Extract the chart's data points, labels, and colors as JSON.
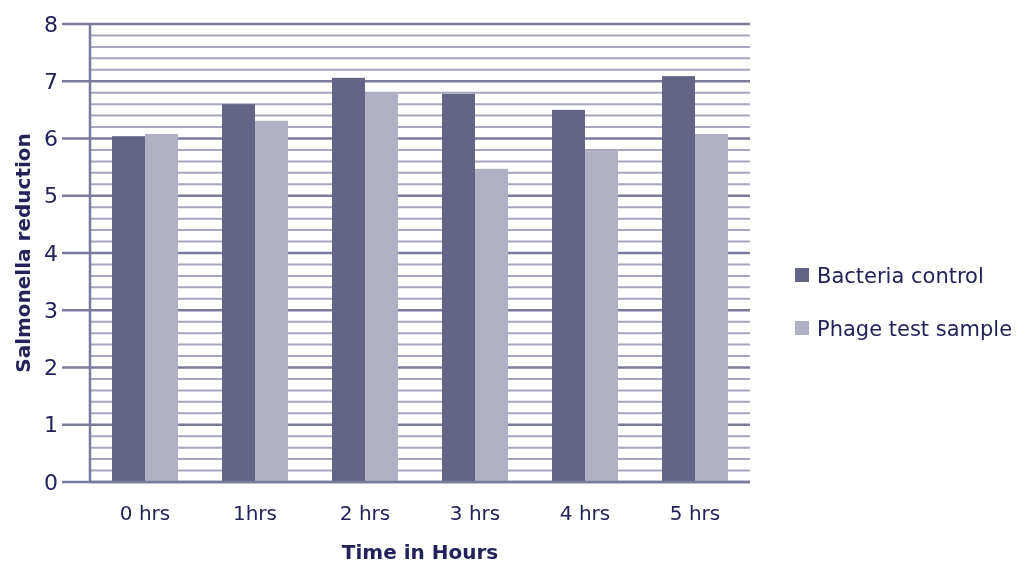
{
  "chart_data": {
    "type": "bar",
    "xlabel": "Time in Hours",
    "ylabel": "Salmonella reduction",
    "categories": [
      "0 hrs",
      "1hrs",
      "2 hrs",
      "3 hrs",
      "4 hrs",
      "5 hrs"
    ],
    "series": [
      {
        "name": "Bacteria control",
        "color": "#646487",
        "values": [
          6.04,
          6.6,
          7.06,
          6.78,
          6.5,
          7.09
        ]
      },
      {
        "name": "Phage test sample",
        "color": "#b0b0c4",
        "values": [
          6.08,
          6.31,
          6.81,
          5.47,
          5.78,
          6.08
        ]
      }
    ],
    "ylim": [
      0,
      8
    ],
    "yticks": [
      0,
      {
        "value": 0.2,
        "label": null
      },
      {
        "value": 0.4,
        "label": null
      },
      {
        "value": 0.6,
        "label": null
      },
      {
        "value": 0.8,
        "label": null
      },
      1,
      {
        "value": 1.2,
        "label": null
      },
      {
        "value": 1.4,
        "label": null
      },
      {
        "value": 1.6,
        "label": null
      },
      {
        "value": 1.8,
        "label": null
      },
      2,
      {
        "value": 2.2,
        "label": null
      },
      {
        "value": 2.4,
        "label": null
      },
      {
        "value": 2.6,
        "label": null
      },
      {
        "value": 2.8,
        "label": null
      },
      3,
      {
        "value": 3.2,
        "label": null
      },
      {
        "value": 3.4,
        "label": null
      },
      {
        "value": 3.6,
        "label": null
      },
      {
        "value": 3.8,
        "label": null
      },
      4,
      {
        "value": 4.2,
        "label": null
      },
      {
        "value": 4.4,
        "label": null
      },
      {
        "value": 4.6,
        "label": null
      },
      {
        "value": 4.8,
        "label": null
      },
      5,
      {
        "value": 5.2,
        "label": null
      },
      {
        "value": 5.4,
        "label": null
      },
      {
        "value": 5.6,
        "label": null
      },
      {
        "value": 5.8,
        "label": null
      },
      6,
      {
        "value": 6.2,
        "label": null
      },
      {
        "value": 6.4,
        "label": null
      },
      {
        "value": 6.6,
        "label": null
      },
      {
        "value": 6.8,
        "label": null
      },
      7,
      {
        "value": 7.2,
        "label": null
      },
      {
        "value": 7.4,
        "label": null
      },
      {
        "value": 7.6,
        "label": null
      },
      {
        "value": 7.8,
        "label": null
      },
      8
    ],
    "grid": true,
    "legend": "right"
  }
}
